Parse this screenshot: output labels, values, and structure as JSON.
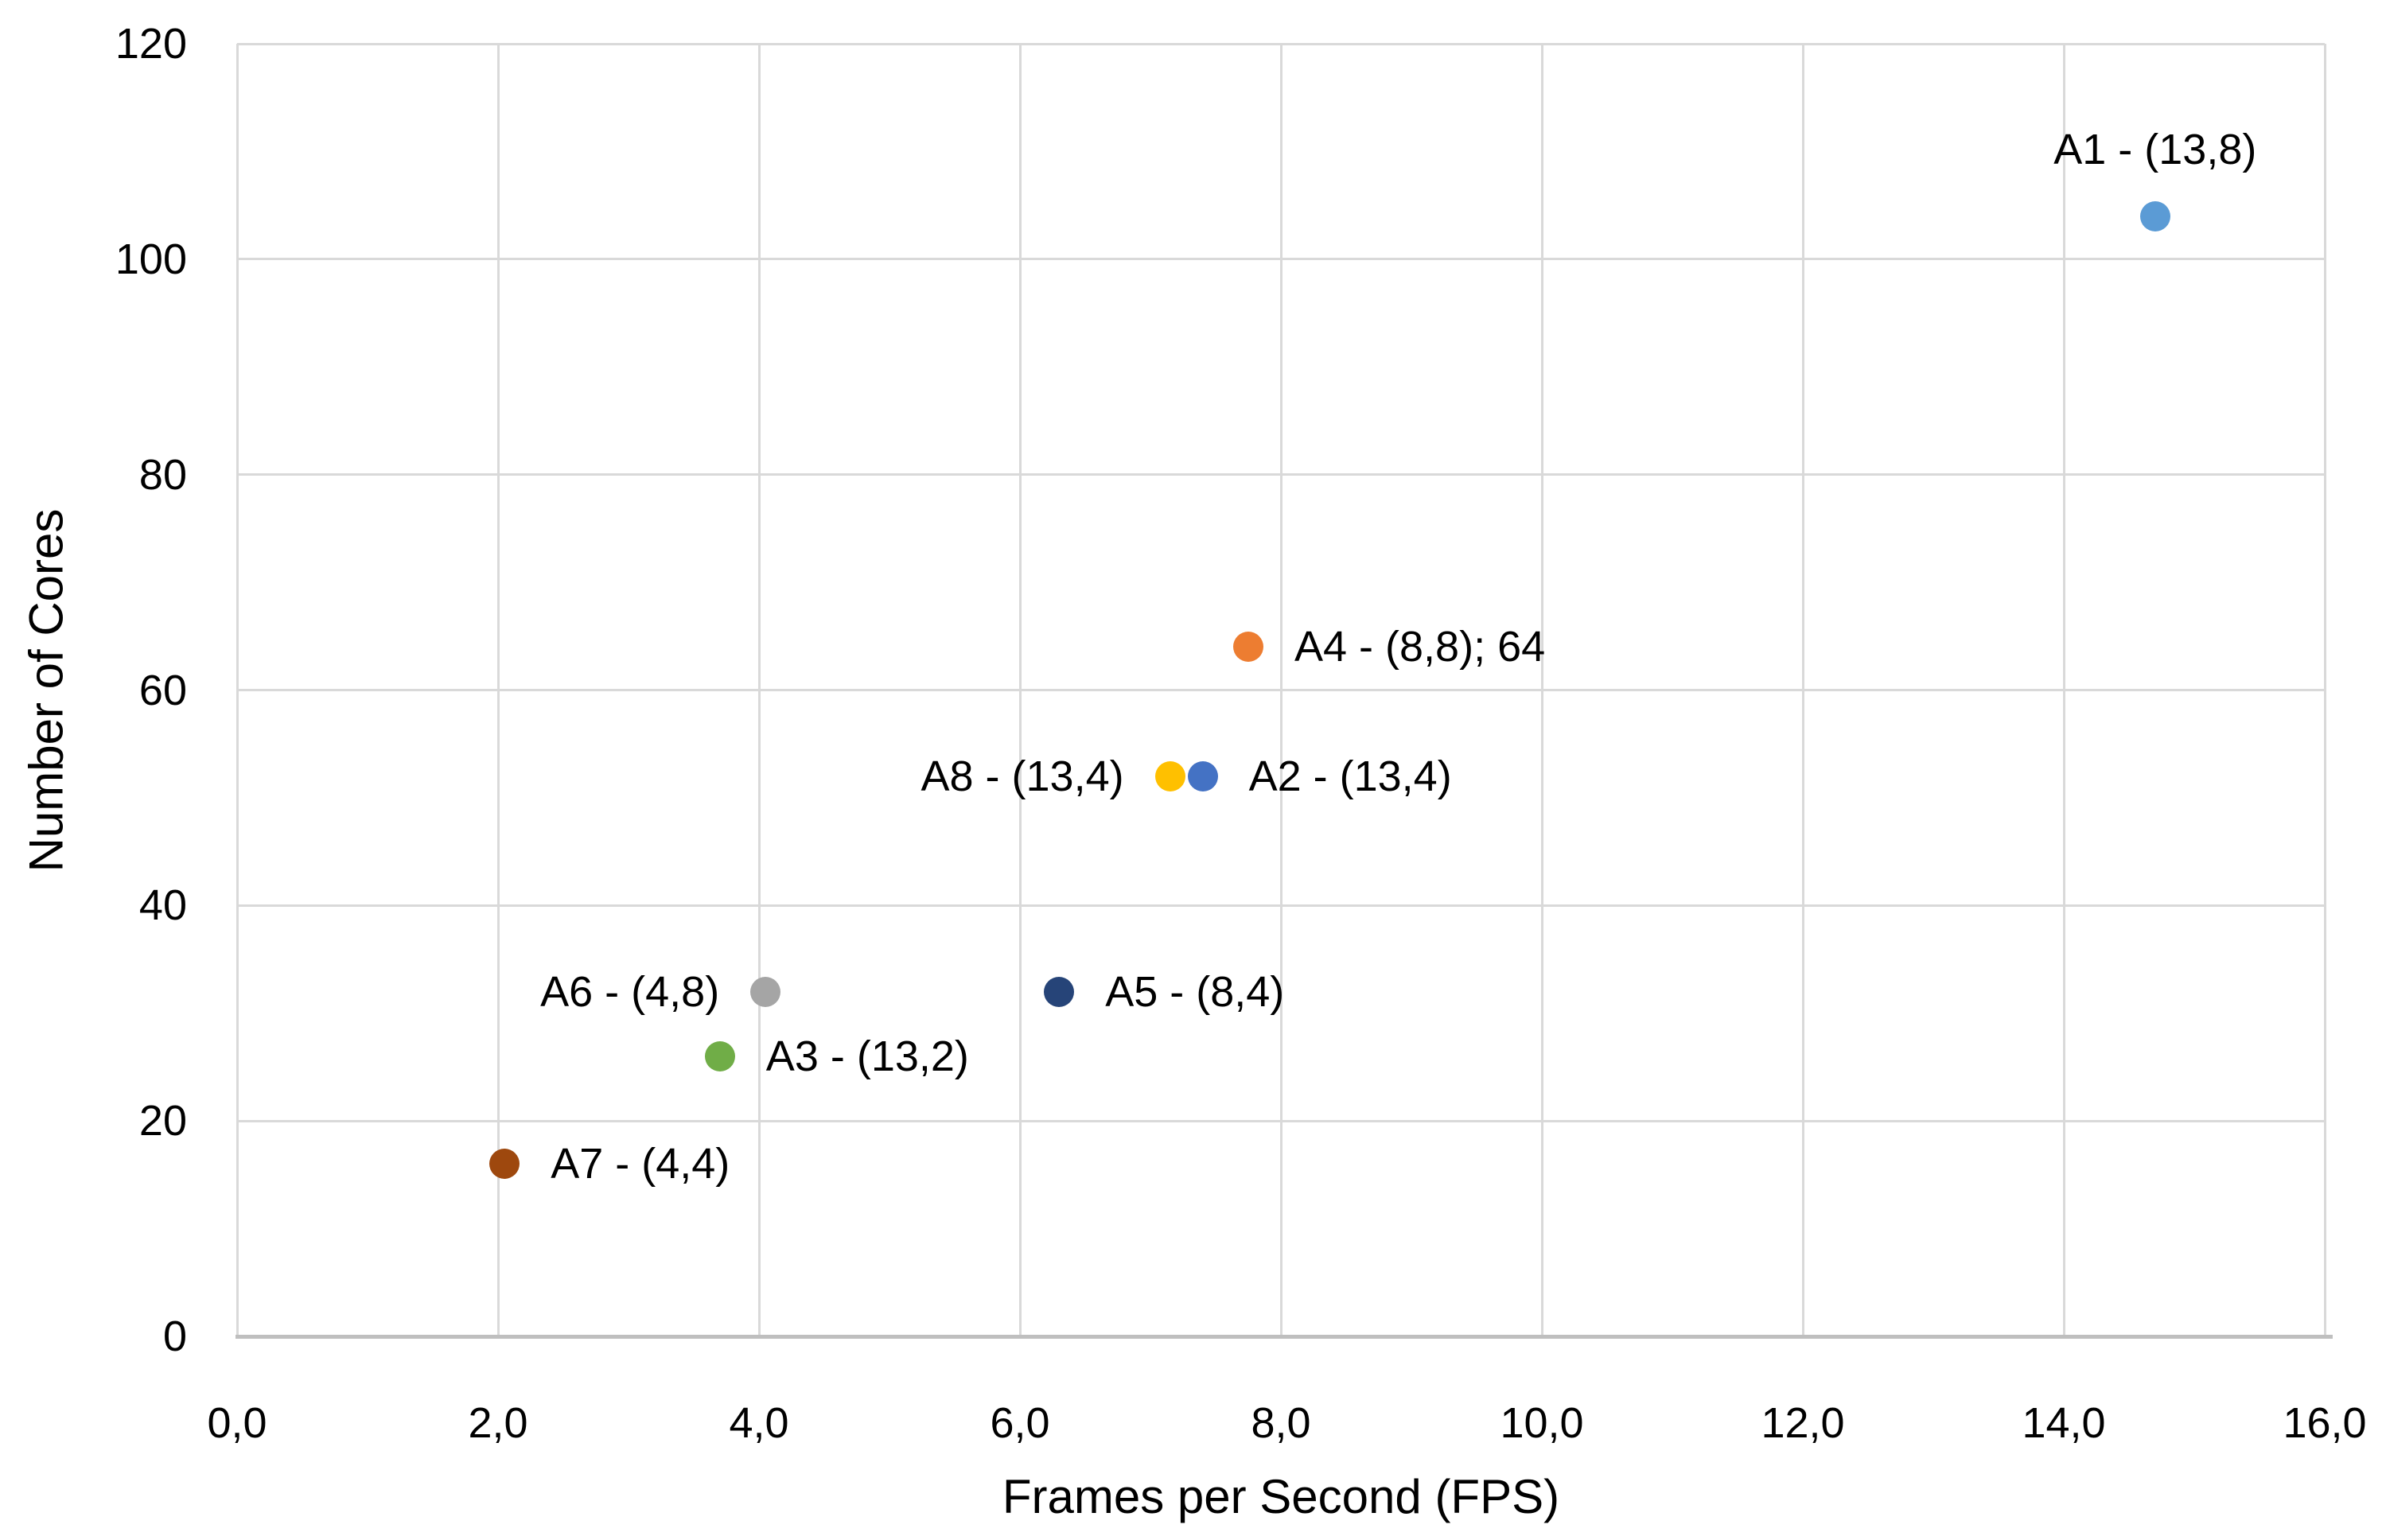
{
  "chart_data": {
    "type": "scatter",
    "title": "",
    "xlabel": "Frames per Second (FPS)",
    "ylabel": "Number of Cores",
    "xlim": [
      0,
      16
    ],
    "ylim": [
      0,
      120
    ],
    "grid": true,
    "legend_position": "none",
    "x_ticks": {
      "values": [
        0,
        2,
        4,
        6,
        8,
        10,
        12,
        14,
        16
      ],
      "labels": [
        "0,0",
        "2,0",
        "4,0",
        "6,0",
        "8,0",
        "10,0",
        "12,0",
        "14,0",
        "16,0"
      ]
    },
    "y_ticks": {
      "values": [
        0,
        20,
        40,
        60,
        80,
        100,
        120
      ],
      "labels": [
        "0",
        "20",
        "40",
        "60",
        "80",
        "100",
        "120"
      ]
    },
    "series": [
      {
        "name": "A1",
        "x": 14.7,
        "y": 104,
        "label": "A1 - (13,8)",
        "color": "#5B9BD5",
        "label_pos": "above"
      },
      {
        "name": "A2",
        "x": 7.4,
        "y": 52,
        "label": "A2 - (13,4)",
        "color": "#4472C4",
        "label_pos": "right"
      },
      {
        "name": "A3",
        "x": 3.7,
        "y": 26,
        "label": "A3 - (13,2)",
        "color": "#70AD47",
        "label_pos": "right"
      },
      {
        "name": "A4",
        "x": 7.75,
        "y": 64,
        "label": "A4 - (8,8); 64",
        "color": "#ED7D31",
        "label_pos": "right"
      },
      {
        "name": "A5",
        "x": 6.3,
        "y": 32,
        "label": "A5 - (8,4)",
        "color": "#264478",
        "label_pos": "right"
      },
      {
        "name": "A6",
        "x": 4.05,
        "y": 32,
        "label": "A6 - (4,8)",
        "color": "#A5A5A5",
        "label_pos": "left"
      },
      {
        "name": "A7",
        "x": 2.05,
        "y": 16,
        "label": "A7 - (4,4)",
        "color": "#9E480E",
        "label_pos": "right"
      },
      {
        "name": "A8",
        "x": 7.15,
        "y": 52,
        "label": "A8 - (13,4)",
        "color": "#FFC000",
        "label_pos": "left"
      }
    ],
    "colors": {
      "gridline": "#D9D9D9",
      "axis_line": "#BFBFBF",
      "text": "#000000",
      "background": "#FFFFFF"
    }
  }
}
